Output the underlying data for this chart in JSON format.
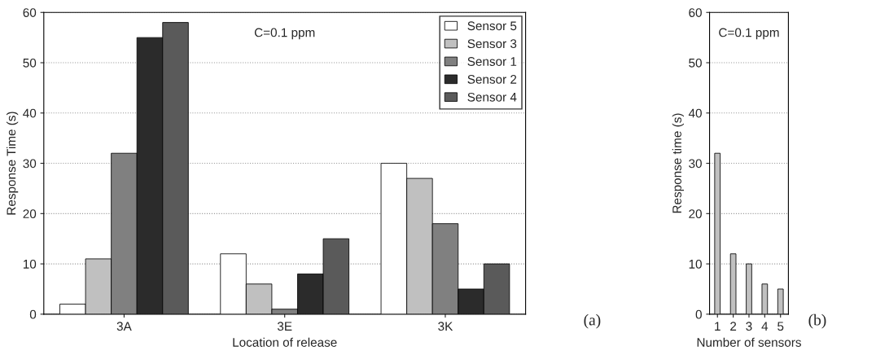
{
  "chart_data": [
    {
      "type": "bar",
      "xlabel": "Location of release",
      "ylabel": "Response Time (s)",
      "categories": [
        "3A",
        "3E",
        "3K"
      ],
      "series": [
        {
          "name": "Sensor 5",
          "color": "#ffffff",
          "values": [
            2,
            12,
            30
          ]
        },
        {
          "name": "Sensor 3",
          "color": "#c0c0c0",
          "values": [
            11,
            6,
            27
          ]
        },
        {
          "name": "Sensor 1",
          "color": "#808080",
          "values": [
            32,
            1,
            18
          ]
        },
        {
          "name": "Sensor 2",
          "color": "#2b2b2b",
          "values": [
            55,
            8,
            5
          ]
        },
        {
          "name": "Sensor 4",
          "color": "#5a5a5a",
          "values": [
            58,
            15,
            10
          ]
        }
      ],
      "ylim": [
        0,
        60
      ],
      "yticks": [
        0,
        10,
        20,
        30,
        40,
        50,
        60
      ],
      "grid": "y",
      "legend": "top right",
      "annotations": [
        "C=0.1 ppm",
        "(a)"
      ]
    },
    {
      "type": "bar",
      "xlabel": "Number of sensors",
      "ylabel": "Response time (s)",
      "categories": [
        "1",
        "2",
        "3",
        "4",
        "5"
      ],
      "series": [
        {
          "color": "#c0c0c0",
          "values": [
            32,
            12,
            10,
            6,
            5
          ]
        }
      ],
      "ylim": [
        0,
        60
      ],
      "yticks": [
        0,
        10,
        20,
        30,
        40,
        50,
        60
      ],
      "grid": "y",
      "annotations": [
        "C=0.1 ppm",
        "(b)"
      ]
    }
  ]
}
